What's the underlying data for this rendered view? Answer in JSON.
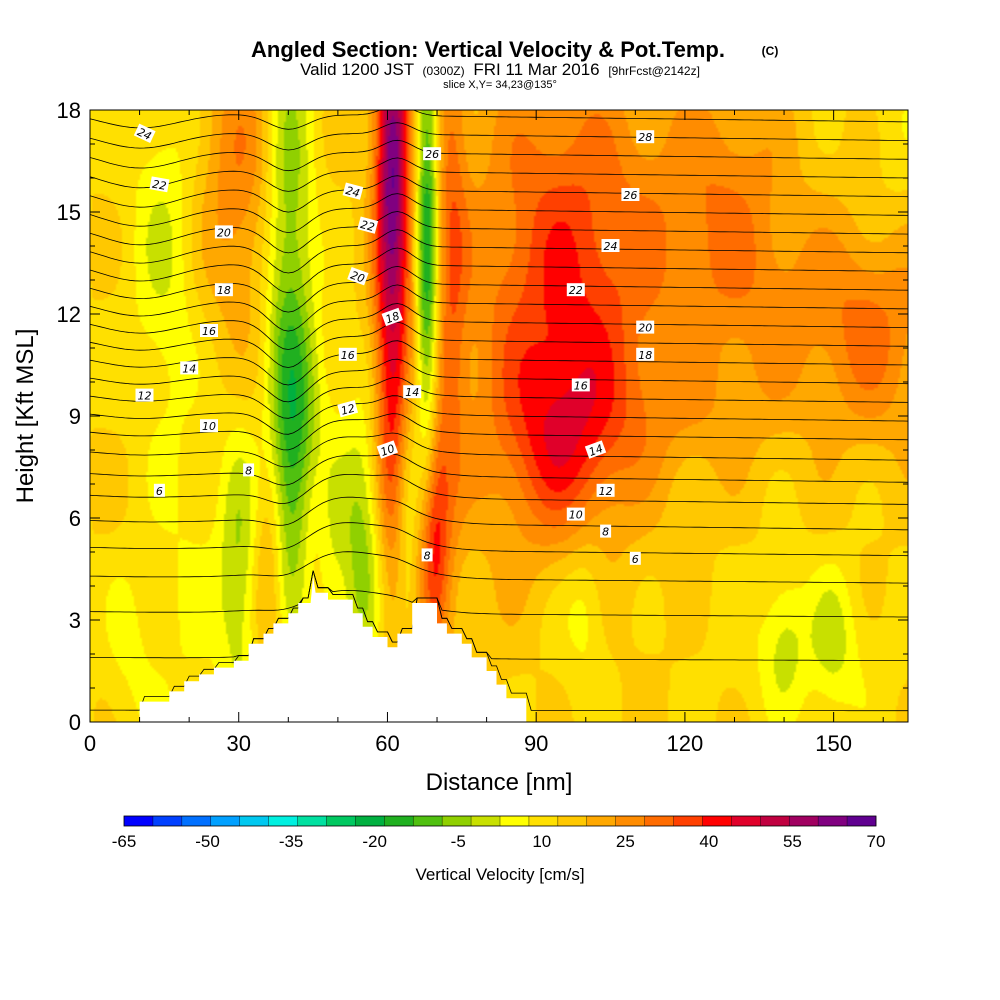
{
  "title": {
    "main": "Angled Section: Vertical Velocity & Pot.Temp.",
    "units": "(C)",
    "valid_prefix": "Valid 1200 JST",
    "valid_utc": "(0300Z)",
    "valid_date": "FRI 11 Mar 2016",
    "forecast": "[9hrFcst@2142z]",
    "slice": "slice X,Y= 34,23@135°"
  },
  "chart_data": {
    "type": "heatmap",
    "xlabel": "Distance [nm]",
    "ylabel": "Height [Kft MSL]",
    "xlim": [
      0,
      165
    ],
    "ylim": [
      0,
      18
    ],
    "x_ticks": [
      0,
      30,
      60,
      90,
      120,
      150
    ],
    "y_ticks": [
      0,
      3,
      6,
      9,
      12,
      15,
      18
    ],
    "grid": false,
    "colorbar": {
      "label": "Vertical Velocity [cm/s]",
      "placement": "bottom",
      "min": -65,
      "max": 70,
      "step": 5,
      "tick_labels": [
        -65,
        -50,
        -35,
        -20,
        -5,
        10,
        25,
        40,
        55,
        70
      ],
      "colors": [
        "#0000ff",
        "#0040ff",
        "#0070ff",
        "#00a0ff",
        "#00c8f0",
        "#00f0e0",
        "#00e0a0",
        "#00c860",
        "#00b040",
        "#20b020",
        "#50c010",
        "#90d000",
        "#c8e000",
        "#ffff00",
        "#ffe000",
        "#ffc800",
        "#ffa800",
        "#ff8c00",
        "#ff6c00",
        "#ff4000",
        "#ff0000",
        "#e0002a",
        "#c00040",
        "#a00060",
        "#800080",
        "#600090"
      ]
    },
    "terrain": {
      "x": [
        0,
        10,
        10,
        16,
        16,
        19,
        19,
        22,
        22,
        25,
        25,
        29,
        29,
        32,
        32,
        35,
        35,
        37,
        37,
        40,
        40,
        42,
        42,
        44.5,
        45,
        45.5,
        48,
        48,
        53,
        53,
        55,
        55,
        57,
        57,
        60,
        60,
        62,
        62,
        65,
        65,
        70,
        70,
        72,
        72,
        75,
        75,
        77,
        77,
        80,
        80,
        82,
        82,
        84,
        84,
        88,
        88,
        165
      ],
      "height": [
        0,
        0,
        0.6,
        0.6,
        0.9,
        0.9,
        1.2,
        1.2,
        1.4,
        1.4,
        1.6,
        1.6,
        1.8,
        1.8,
        2.3,
        2.3,
        2.6,
        2.6,
        2.9,
        2.9,
        3.2,
        3.2,
        3.5,
        3.5,
        4.3,
        3.8,
        3.8,
        3.6,
        3.6,
        3.2,
        3.2,
        2.8,
        2.8,
        2.5,
        2.5,
        2.2,
        2.2,
        2.6,
        2.6,
        3.5,
        3.5,
        2.9,
        2.9,
        2.6,
        2.6,
        2.3,
        2.3,
        1.9,
        1.9,
        1.5,
        1.5,
        1.1,
        1.1,
        0.7,
        0.7,
        0,
        0
      ]
    },
    "vertical_velocity_features": [
      {
        "x": 0,
        "z": 0,
        "sx": 1000,
        "sz": 1000,
        "w": 10
      },
      {
        "x": 40,
        "z": 13,
        "sx": 3.5,
        "sz": 6,
        "w": -22
      },
      {
        "x": 41,
        "z": 7,
        "sx": 3,
        "sz": 2.5,
        "w": -12
      },
      {
        "x": 45,
        "z": 9,
        "sx": 4,
        "sz": 2,
        "w": -8
      },
      {
        "x": 61,
        "z": 14,
        "sx": 2.6,
        "sz": 6.5,
        "w": 38
      },
      {
        "x": 61,
        "z": 17,
        "sx": 2,
        "sz": 2,
        "w": 15
      },
      {
        "x": 68,
        "z": 14,
        "sx": 1.6,
        "sz": 6,
        "w": -32
      },
      {
        "x": 73,
        "z": 14,
        "sx": 2.2,
        "sz": 6,
        "w": 14
      },
      {
        "x": 55,
        "z": 5,
        "sx": 3,
        "sz": 3,
        "w": -18
      },
      {
        "x": 48,
        "z": 5,
        "sx": 2.5,
        "sz": 2,
        "w": -12
      },
      {
        "x": 69,
        "z": 5.5,
        "sx": 2.2,
        "sz": 2.5,
        "w": 30
      },
      {
        "x": 64,
        "z": 6,
        "sx": 1.8,
        "sz": 3,
        "w": -12
      },
      {
        "x": 30,
        "z": 4.5,
        "sx": 3,
        "sz": 3,
        "w": -15
      },
      {
        "x": 36,
        "z": 4.5,
        "sx": 2.2,
        "sz": 2.5,
        "w": 12
      },
      {
        "x": 46,
        "z": 6,
        "sx": 2.5,
        "sz": 2,
        "w": 10
      },
      {
        "x": 30,
        "z": 16,
        "sx": 6,
        "sz": 3.5,
        "w": 14
      },
      {
        "x": 15,
        "z": 14,
        "sx": 5,
        "sz": 4,
        "w": -10
      },
      {
        "x": 20,
        "z": 3.5,
        "sx": 5,
        "sz": 4,
        "w": -5
      },
      {
        "x": 8,
        "z": 2,
        "sx": 4,
        "sz": 2,
        "w": -6
      },
      {
        "x": 90,
        "z": 12,
        "sx": 14,
        "sz": 6,
        "w": 12
      },
      {
        "x": 100,
        "z": 13,
        "sx": 12,
        "sz": 4,
        "w": 15
      },
      {
        "x": 95,
        "z": 3,
        "sx": 7,
        "sz": 3,
        "w": -4
      },
      {
        "x": 100,
        "z": 3.5,
        "sx": 3,
        "sz": 1.5,
        "w": -8
      },
      {
        "x": 145,
        "z": 2,
        "sx": 12,
        "sz": 1.5,
        "w": -5
      },
      {
        "x": 140,
        "z": 2.5,
        "sx": 3,
        "sz": 1.5,
        "w": -8
      },
      {
        "x": 150,
        "z": 2.5,
        "sx": 3,
        "sz": 1.5,
        "w": -8
      },
      {
        "x": 160,
        "z": 11.5,
        "sx": 8,
        "sz": 2.5,
        "w": 14
      },
      {
        "x": 162,
        "z": 16,
        "sx": 5,
        "sz": 4,
        "w": -4
      },
      {
        "x": 128,
        "z": 15,
        "sx": 10,
        "sz": 3,
        "w": 14
      },
      {
        "x": 145,
        "z": 12,
        "sx": 12,
        "sz": 2,
        "w": 8
      },
      {
        "x": 120,
        "z": 9,
        "sx": 18,
        "sz": 1.5,
        "w": 6
      },
      {
        "x": 95,
        "z": 8,
        "sx": 8,
        "sz": 2,
        "w": 14
      }
    ],
    "pot_temp_contours": {
      "base_levels": [
        0.35,
        1.9,
        3.25,
        4.3,
        5.15,
        5.95,
        6.7,
        7.35,
        8.0,
        8.6,
        9.15,
        9.7,
        10.25,
        10.8,
        11.35,
        11.9,
        12.45,
        13.0,
        13.55,
        14.1,
        14.65,
        15.2,
        15.75,
        16.3,
        16.85,
        17.4,
        17.95,
        18.5
      ],
      "labels": [
        {
          "text": "24",
          "x": 11,
          "z": 17.3,
          "angle": 25
        },
        {
          "text": "22",
          "x": 14,
          "z": 15.8,
          "angle": 10
        },
        {
          "text": "20",
          "x": 27,
          "z": 14.4,
          "angle": 0
        },
        {
          "text": "18",
          "x": 27,
          "z": 12.7,
          "angle": 0
        },
        {
          "text": "16",
          "x": 24,
          "z": 11.5,
          "angle": 0
        },
        {
          "text": "14",
          "x": 20,
          "z": 10.4,
          "angle": 0
        },
        {
          "text": "12",
          "x": 11,
          "z": 9.6,
          "angle": 0
        },
        {
          "text": "10",
          "x": 24,
          "z": 8.7,
          "angle": 0
        },
        {
          "text": "8",
          "x": 32,
          "z": 7.4,
          "angle": 0
        },
        {
          "text": "6",
          "x": 14,
          "z": 6.8,
          "angle": 0
        },
        {
          "text": "24",
          "x": 53,
          "z": 15.6,
          "angle": 15
        },
        {
          "text": "22",
          "x": 56,
          "z": 14.6,
          "angle": 15
        },
        {
          "text": "20",
          "x": 54,
          "z": 13.1,
          "angle": 20
        },
        {
          "text": "18",
          "x": 61,
          "z": 11.9,
          "angle": -20
        },
        {
          "text": "16",
          "x": 52,
          "z": 10.8,
          "angle": 0
        },
        {
          "text": "26",
          "x": 69,
          "z": 16.7,
          "angle": 0
        },
        {
          "text": "12",
          "x": 52,
          "z": 9.2,
          "angle": -15
        },
        {
          "text": "14",
          "x": 65,
          "z": 9.7,
          "angle": 0
        },
        {
          "text": "10",
          "x": 60,
          "z": 8.0,
          "angle": -20
        },
        {
          "text": "8",
          "x": 68,
          "z": 4.9,
          "angle": 0
        },
        {
          "text": "28",
          "x": 112,
          "z": 17.2,
          "angle": 0
        },
        {
          "text": "26",
          "x": 109,
          "z": 15.5,
          "angle": 0
        },
        {
          "text": "24",
          "x": 105,
          "z": 14.0,
          "angle": 0
        },
        {
          "text": "22",
          "x": 98,
          "z": 12.7,
          "angle": 0
        },
        {
          "text": "20",
          "x": 112,
          "z": 11.6,
          "angle": 0
        },
        {
          "text": "18",
          "x": 112,
          "z": 10.8,
          "angle": 0
        },
        {
          "text": "16",
          "x": 99,
          "z": 9.9,
          "angle": 0
        },
        {
          "text": "14",
          "x": 102,
          "z": 8.0,
          "angle": -20
        },
        {
          "text": "12",
          "x": 104,
          "z": 6.8,
          "angle": 0
        },
        {
          "text": "10",
          "x": 98,
          "z": 6.1,
          "angle": 0
        },
        {
          "text": "8",
          "x": 104,
          "z": 5.6,
          "angle": 0
        },
        {
          "text": "6",
          "x": 110,
          "z": 4.8,
          "angle": 0
        }
      ]
    }
  }
}
